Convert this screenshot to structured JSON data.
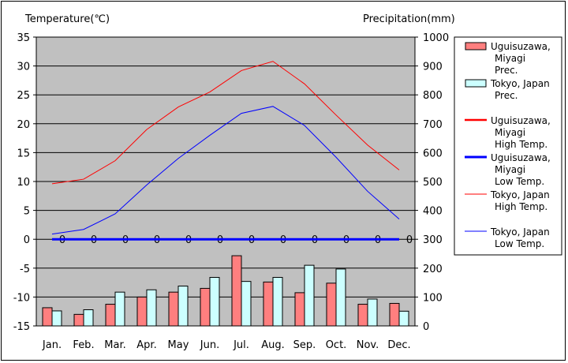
{
  "chart_data": {
    "type": "bar+line",
    "left_axis_title": "Temperature(℃)",
    "right_axis_title": "Precipitation(mm)",
    "categories": [
      "Jan.",
      "Feb.",
      "Mar.",
      "Apr.",
      "May",
      "Jun.",
      "Jul.",
      "Aug.",
      "Sep.",
      "Oct.",
      "Nov.",
      "Dec."
    ],
    "y_left": {
      "min": -15,
      "max": 35,
      "step": 5,
      "ticks": [
        "-15",
        "-10",
        "-5",
        "0",
        "5",
        "10",
        "15",
        "20",
        "25",
        "30",
        "35"
      ]
    },
    "y_right": {
      "min": 0,
      "max": 1000,
      "step": 100,
      "ticks": [
        "0",
        "100",
        "200",
        "300",
        "400",
        "500",
        "600",
        "700",
        "800",
        "900",
        "1000"
      ]
    },
    "bars": [
      {
        "name": "Uguisuzawa, Miyagi Prec.",
        "color": "#ff7f7f",
        "values": [
          63,
          40,
          75,
          100,
          117,
          130,
          243,
          152,
          115,
          148,
          75,
          78
        ]
      },
      {
        "name": "Tokyo, Japan Prec.",
        "color": "#ccffff",
        "values": [
          52,
          56,
          117,
          125,
          138,
          168,
          154,
          168,
          210,
          197,
          93,
          51
        ]
      }
    ],
    "lines": [
      {
        "name": "Uguisuzawa, Miyagi High Temp.",
        "color": "#ff0000",
        "width": 2.5,
        "values": [
          0,
          0,
          0,
          0,
          0,
          0,
          0,
          0,
          0,
          0,
          0,
          0
        ],
        "show_labels": true
      },
      {
        "name": "Uguisuzawa, Miyagi Low Temp.",
        "color": "#0000ff",
        "width": 3,
        "values": [
          0,
          0,
          0,
          0,
          0,
          0,
          0,
          0,
          0,
          0,
          0,
          0
        ]
      },
      {
        "name": "Tokyo, Japan High Temp.",
        "color": "#ff0000",
        "width": 1,
        "values": [
          9.6,
          10.4,
          13.6,
          19.0,
          22.9,
          25.5,
          29.2,
          30.8,
          26.9,
          21.5,
          16.3,
          12.0
        ]
      },
      {
        "name": "Tokyo, Japan Low Temp.",
        "color": "#0000ff",
        "width": 1,
        "values": [
          0.9,
          1.7,
          4.4,
          9.4,
          14.0,
          18.0,
          21.8,
          23.0,
          19.7,
          14.2,
          8.3,
          3.5
        ]
      }
    ],
    "data_label": "0",
    "legend": [
      {
        "kind": "bar",
        "color": "#ff7f7f",
        "lines": [
          "Uguisuzawa,",
          "Miyagi",
          "Prec."
        ]
      },
      {
        "kind": "bar",
        "color": "#ccffff",
        "lines": [
          "Tokyo, Japan",
          "Prec."
        ]
      },
      {
        "kind": "line",
        "color": "#ff0000",
        "width": 2.5,
        "lines": [
          "Uguisuzawa,",
          "Miyagi",
          "High Temp."
        ]
      },
      {
        "kind": "line",
        "color": "#0000ff",
        "width": 3,
        "lines": [
          "Uguisuzawa,",
          "Miyagi",
          "Low Temp."
        ]
      },
      {
        "kind": "line",
        "color": "#ff0000",
        "width": 1,
        "lines": [
          "Tokyo, Japan",
          "High Temp."
        ]
      },
      {
        "kind": "line",
        "color": "#0000ff",
        "width": 1,
        "lines": [
          "Tokyo, Japan",
          "Low Temp."
        ]
      }
    ],
    "legend_position": "right",
    "plot_background": "#c0c0c0",
    "grid": "horizontal"
  }
}
